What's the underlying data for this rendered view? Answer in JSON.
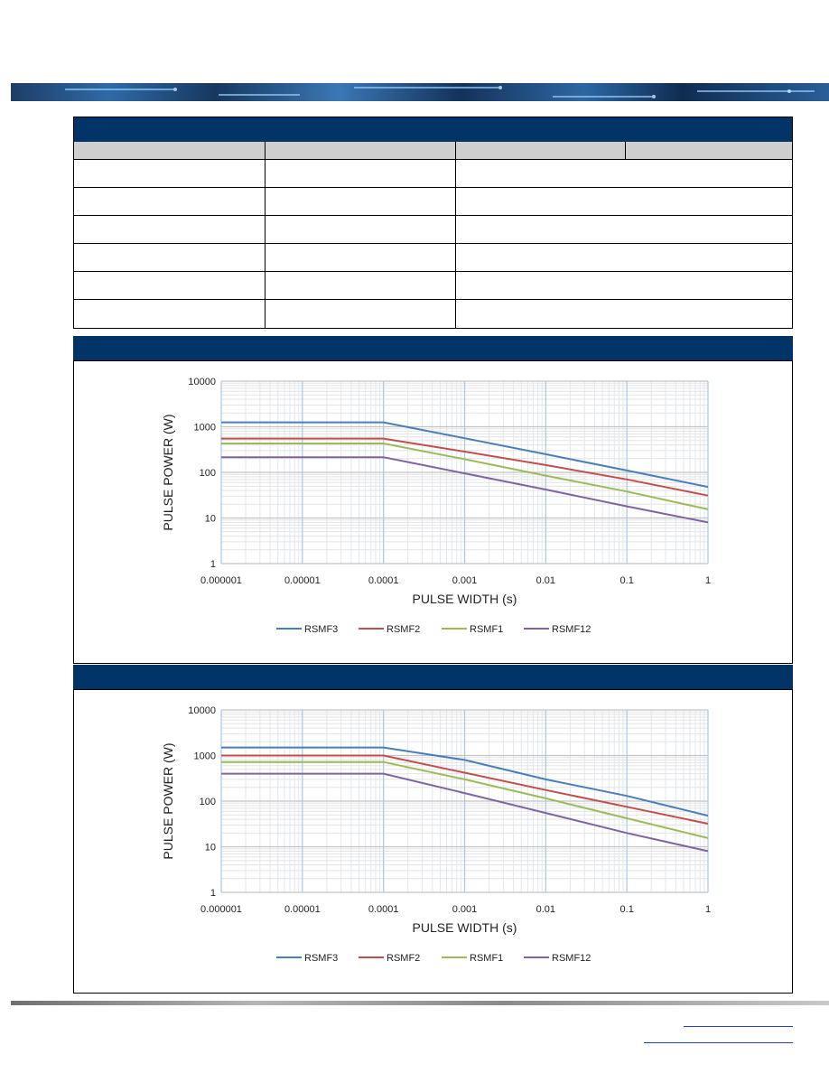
{
  "colors": {
    "navy": "#003366",
    "RSMF3": "#4a7ebb",
    "RSMF2": "#c0504d",
    "RSMF1": "#9bbb59",
    "RSMF12": "#8064a2"
  },
  "chart_data": [
    {
      "type": "line",
      "title": "",
      "xlabel": "PULSE WIDTH (s)",
      "ylabel": "PULSE POWER (W)",
      "xscale": "log",
      "yscale": "log",
      "xlim": [
        1e-06,
        1
      ],
      "ylim": [
        1,
        10000
      ],
      "xticks": [
        "0.000001",
        "0.00001",
        "0.0001",
        "0.001",
        "0.01",
        "0.1",
        "1"
      ],
      "yticks": [
        "1",
        "10",
        "100",
        "1000",
        "10000"
      ],
      "grid": true,
      "legend": "bottom",
      "series": [
        {
          "name": "RSMF3",
          "color": "#4a7ebb",
          "points": [
            [
              1e-06,
              1250
            ],
            [
              0.0001,
              1250
            ],
            [
              0.001,
              560
            ],
            [
              0.01,
              250
            ],
            [
              0.1,
              110
            ],
            [
              1,
              48
            ]
          ]
        },
        {
          "name": "RSMF2",
          "color": "#c0504d",
          "points": [
            [
              1e-06,
              550
            ],
            [
              0.0001,
              550
            ],
            [
              0.001,
              285
            ],
            [
              0.01,
              145
            ],
            [
              0.1,
              70
            ],
            [
              1,
              31
            ]
          ]
        },
        {
          "name": "RSMF1",
          "color": "#9bbb59",
          "points": [
            [
              1e-06,
              430
            ],
            [
              0.0001,
              430
            ],
            [
              0.001,
              195
            ],
            [
              0.01,
              85
            ],
            [
              0.1,
              38
            ],
            [
              1,
              15.5
            ]
          ]
        },
        {
          "name": "RSMF12",
          "color": "#8064a2",
          "points": [
            [
              1e-06,
              215
            ],
            [
              0.0001,
              215
            ],
            [
              0.001,
              95
            ],
            [
              0.01,
              42
            ],
            [
              0.1,
              18
            ],
            [
              1,
              8
            ]
          ]
        }
      ]
    },
    {
      "type": "line",
      "title": "",
      "xlabel": "PULSE WIDTH (s)",
      "ylabel": "PULSE POWER (W)",
      "xscale": "log",
      "yscale": "log",
      "xlim": [
        1e-06,
        1
      ],
      "ylim": [
        1,
        10000
      ],
      "xticks": [
        "0.000001",
        "0.00001",
        "0.0001",
        "0.001",
        "0.01",
        "0.1",
        "1"
      ],
      "yticks": [
        "1",
        "10",
        "100",
        "1000",
        "10000"
      ],
      "grid": true,
      "legend": "bottom",
      "series": [
        {
          "name": "RSMF3",
          "color": "#4a7ebb",
          "points": [
            [
              1e-06,
              1500
            ],
            [
              0.0001,
              1500
            ],
            [
              0.001,
              800
            ],
            [
              0.01,
              300
            ],
            [
              0.1,
              130
            ],
            [
              1,
              48
            ]
          ]
        },
        {
          "name": "RSMF2",
          "color": "#c0504d",
          "points": [
            [
              1e-06,
              1000
            ],
            [
              0.0001,
              1000
            ],
            [
              0.001,
              420
            ],
            [
              0.01,
              175
            ],
            [
              0.1,
              75
            ],
            [
              1,
              32
            ]
          ]
        },
        {
          "name": "RSMF1",
          "color": "#9bbb59",
          "points": [
            [
              1e-06,
              720
            ],
            [
              0.0001,
              720
            ],
            [
              0.001,
              300
            ],
            [
              0.01,
              115
            ],
            [
              0.1,
              42
            ],
            [
              1,
              15.5
            ]
          ]
        },
        {
          "name": "RSMF12",
          "color": "#8064a2",
          "points": [
            [
              1e-06,
              400
            ],
            [
              0.0001,
              400
            ],
            [
              0.001,
              150
            ],
            [
              0.01,
              55
            ],
            [
              0.1,
              20
            ],
            [
              1,
              8
            ]
          ]
        }
      ]
    }
  ]
}
